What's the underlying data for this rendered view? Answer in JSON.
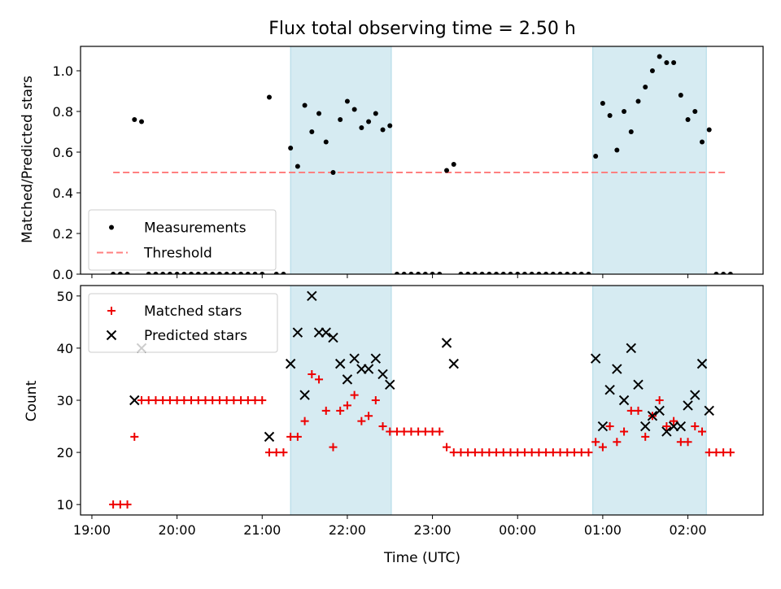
{
  "title": "Flux total observing time = 2.50 h",
  "top_ylabel": "Matched/Predicted stars",
  "bottom_ylabel": "Count",
  "xlabel": "Time (UTC)",
  "colors": {
    "measurement": "#000000",
    "threshold": "#ff8080",
    "matched": "#ee0000",
    "predicted": "#000000",
    "shade": "#add8e6"
  },
  "legend_top": [
    {
      "label": "Measurements",
      "marker": "dot"
    },
    {
      "label": "Threshold",
      "marker": "dashed-line"
    }
  ],
  "legend_bottom": [
    {
      "label": "Matched stars",
      "marker": "plus"
    },
    {
      "label": "Predicted stars",
      "marker": "x"
    }
  ],
  "chart_data": [
    {
      "type": "scatter",
      "panel": "top",
      "ylabel": "Matched/Predicted stars",
      "xlim": [
        "18:52",
        "02:53"
      ],
      "ylim": [
        0,
        1.12
      ],
      "x_ticks": [
        "19:00",
        "20:00",
        "21:00",
        "22:00",
        "23:00",
        "00:00",
        "01:00",
        "02:00"
      ],
      "y_ticks": [
        "0.0",
        "0.2",
        "0.4",
        "0.6",
        "0.8",
        "1.0"
      ],
      "grid": false,
      "legend_position": "lower-left",
      "shaded_intervals": [
        [
          "21:20",
          "22:31"
        ],
        [
          "00:53",
          "02:13"
        ]
      ],
      "threshold": {
        "name": "Threshold",
        "y": 0.5,
        "x_start": "19:15",
        "x_end": "02:28"
      },
      "series": [
        {
          "name": "Measurements",
          "marker": "dot",
          "points": [
            [
              "19:15",
              0
            ],
            [
              "19:20",
              0
            ],
            [
              "19:25",
              0
            ],
            [
              "19:30",
              0.76
            ],
            [
              "19:35",
              0.75
            ],
            [
              "19:40",
              0
            ],
            [
              "19:45",
              0
            ],
            [
              "19:50",
              0
            ],
            [
              "19:55",
              0
            ],
            [
              "20:00",
              0
            ],
            [
              "20:05",
              0
            ],
            [
              "20:10",
              0
            ],
            [
              "20:15",
              0
            ],
            [
              "20:20",
              0
            ],
            [
              "20:25",
              0
            ],
            [
              "20:30",
              0
            ],
            [
              "20:35",
              0
            ],
            [
              "20:40",
              0
            ],
            [
              "20:45",
              0
            ],
            [
              "20:50",
              0
            ],
            [
              "20:55",
              0
            ],
            [
              "21:00",
              0
            ],
            [
              "21:05",
              0.87
            ],
            [
              "21:10",
              0
            ],
            [
              "21:15",
              0
            ],
            [
              "21:20",
              0.62
            ],
            [
              "21:25",
              0.53
            ],
            [
              "21:30",
              0.83
            ],
            [
              "21:35",
              0.7
            ],
            [
              "21:40",
              0.79
            ],
            [
              "21:45",
              0.65
            ],
            [
              "21:50",
              0.5
            ],
            [
              "21:55",
              0.76
            ],
            [
              "22:00",
              0.85
            ],
            [
              "22:05",
              0.81
            ],
            [
              "22:10",
              0.72
            ],
            [
              "22:15",
              0.75
            ],
            [
              "22:20",
              0.79
            ],
            [
              "22:25",
              0.71
            ],
            [
              "22:30",
              0.73
            ],
            [
              "22:35",
              0
            ],
            [
              "22:40",
              0
            ],
            [
              "22:45",
              0
            ],
            [
              "22:50",
              0
            ],
            [
              "22:55",
              0
            ],
            [
              "23:00",
              0
            ],
            [
              "23:05",
              0
            ],
            [
              "23:10",
              0.51
            ],
            [
              "23:15",
              0.54
            ],
            [
              "23:20",
              0
            ],
            [
              "23:25",
              0
            ],
            [
              "23:30",
              0
            ],
            [
              "23:35",
              0
            ],
            [
              "23:40",
              0
            ],
            [
              "23:45",
              0
            ],
            [
              "23:50",
              0
            ],
            [
              "23:55",
              0
            ],
            [
              "00:00",
              0
            ],
            [
              "00:05",
              0
            ],
            [
              "00:10",
              0
            ],
            [
              "00:15",
              0
            ],
            [
              "00:20",
              0
            ],
            [
              "00:25",
              0
            ],
            [
              "00:30",
              0
            ],
            [
              "00:35",
              0
            ],
            [
              "00:40",
              0
            ],
            [
              "00:45",
              0
            ],
            [
              "00:50",
              0
            ],
            [
              "00:55",
              0.58
            ],
            [
              "01:00",
              0.84
            ],
            [
              "01:05",
              0.78
            ],
            [
              "01:10",
              0.61
            ],
            [
              "01:15",
              0.8
            ],
            [
              "01:20",
              0.7
            ],
            [
              "01:25",
              0.85
            ],
            [
              "01:30",
              0.92
            ],
            [
              "01:35",
              1.0
            ],
            [
              "01:40",
              1.07
            ],
            [
              "01:45",
              1.04
            ],
            [
              "01:50",
              1.04
            ],
            [
              "01:55",
              0.88
            ],
            [
              "02:00",
              0.76
            ],
            [
              "02:05",
              0.8
            ],
            [
              "02:10",
              0.65
            ],
            [
              "02:15",
              0.71
            ],
            [
              "02:20",
              0
            ],
            [
              "02:25",
              0
            ],
            [
              "02:30",
              0
            ]
          ]
        }
      ]
    },
    {
      "type": "scatter",
      "panel": "bottom",
      "ylabel": "Count",
      "xlabel": "Time (UTC)",
      "xlim": [
        "18:52",
        "02:53"
      ],
      "ylim": [
        8,
        52
      ],
      "x_ticks": [
        "19:00",
        "20:00",
        "21:00",
        "22:00",
        "23:00",
        "00:00",
        "01:00",
        "02:00"
      ],
      "y_ticks": [
        "10",
        "20",
        "30",
        "40",
        "50"
      ],
      "grid": false,
      "legend_position": "top-left",
      "shaded_intervals": [
        [
          "21:20",
          "22:31"
        ],
        [
          "00:53",
          "02:13"
        ]
      ],
      "series": [
        {
          "name": "Matched stars",
          "marker": "plus",
          "points": [
            [
              "19:15",
              10
            ],
            [
              "19:20",
              10
            ],
            [
              "19:25",
              10
            ],
            [
              "19:30",
              23
            ],
            [
              "19:35",
              30
            ],
            [
              "19:40",
              30
            ],
            [
              "19:45",
              30
            ],
            [
              "19:50",
              30
            ],
            [
              "19:55",
              30
            ],
            [
              "20:00",
              30
            ],
            [
              "20:05",
              30
            ],
            [
              "20:10",
              30
            ],
            [
              "20:15",
              30
            ],
            [
              "20:20",
              30
            ],
            [
              "20:25",
              30
            ],
            [
              "20:30",
              30
            ],
            [
              "20:35",
              30
            ],
            [
              "20:40",
              30
            ],
            [
              "20:45",
              30
            ],
            [
              "20:50",
              30
            ],
            [
              "20:55",
              30
            ],
            [
              "21:00",
              30
            ],
            [
              "21:05",
              20
            ],
            [
              "21:10",
              20
            ],
            [
              "21:15",
              20
            ],
            [
              "21:20",
              23
            ],
            [
              "21:25",
              23
            ],
            [
              "21:30",
              26
            ],
            [
              "21:35",
              35
            ],
            [
              "21:40",
              34
            ],
            [
              "21:45",
              28
            ],
            [
              "21:50",
              21
            ],
            [
              "21:55",
              28
            ],
            [
              "22:00",
              29
            ],
            [
              "22:05",
              31
            ],
            [
              "22:10",
              26
            ],
            [
              "22:15",
              27
            ],
            [
              "22:20",
              30
            ],
            [
              "22:25",
              25
            ],
            [
              "22:30",
              24
            ],
            [
              "22:35",
              24
            ],
            [
              "22:40",
              24
            ],
            [
              "22:45",
              24
            ],
            [
              "22:50",
              24
            ],
            [
              "22:55",
              24
            ],
            [
              "23:00",
              24
            ],
            [
              "23:05",
              24
            ],
            [
              "23:10",
              21
            ],
            [
              "23:15",
              20
            ],
            [
              "23:20",
              20
            ],
            [
              "23:25",
              20
            ],
            [
              "23:30",
              20
            ],
            [
              "23:35",
              20
            ],
            [
              "23:40",
              20
            ],
            [
              "23:45",
              20
            ],
            [
              "23:50",
              20
            ],
            [
              "23:55",
              20
            ],
            [
              "00:00",
              20
            ],
            [
              "00:05",
              20
            ],
            [
              "00:10",
              20
            ],
            [
              "00:15",
              20
            ],
            [
              "00:20",
              20
            ],
            [
              "00:25",
              20
            ],
            [
              "00:30",
              20
            ],
            [
              "00:35",
              20
            ],
            [
              "00:40",
              20
            ],
            [
              "00:45",
              20
            ],
            [
              "00:50",
              20
            ],
            [
              "00:55",
              22
            ],
            [
              "01:00",
              21
            ],
            [
              "01:05",
              25
            ],
            [
              "01:10",
              22
            ],
            [
              "01:15",
              24
            ],
            [
              "01:20",
              28
            ],
            [
              "01:25",
              28
            ],
            [
              "01:30",
              23
            ],
            [
              "01:35",
              27
            ],
            [
              "01:40",
              30
            ],
            [
              "01:45",
              25
            ],
            [
              "01:50",
              26
            ],
            [
              "01:55",
              22
            ],
            [
              "02:00",
              22
            ],
            [
              "02:05",
              25
            ],
            [
              "02:10",
              24
            ],
            [
              "02:15",
              20
            ],
            [
              "02:20",
              20
            ],
            [
              "02:25",
              20
            ],
            [
              "02:30",
              20
            ]
          ]
        },
        {
          "name": "Predicted stars",
          "marker": "x",
          "points": [
            [
              "19:30",
              30
            ],
            [
              "19:35",
              40
            ],
            [
              "21:05",
              23
            ],
            [
              "21:20",
              37
            ],
            [
              "21:25",
              43
            ],
            [
              "21:30",
              31
            ],
            [
              "21:35",
              50
            ],
            [
              "21:40",
              43
            ],
            [
              "21:45",
              43
            ],
            [
              "21:50",
              42
            ],
            [
              "21:55",
              37
            ],
            [
              "22:00",
              34
            ],
            [
              "22:05",
              38
            ],
            [
              "22:10",
              36
            ],
            [
              "22:15",
              36
            ],
            [
              "22:20",
              38
            ],
            [
              "22:25",
              35
            ],
            [
              "22:30",
              33
            ],
            [
              "23:10",
              41
            ],
            [
              "23:15",
              37
            ],
            [
              "00:55",
              38
            ],
            [
              "01:00",
              25
            ],
            [
              "01:05",
              32
            ],
            [
              "01:10",
              36
            ],
            [
              "01:15",
              30
            ],
            [
              "01:20",
              40
            ],
            [
              "01:25",
              33
            ],
            [
              "01:30",
              25
            ],
            [
              "01:35",
              27
            ],
            [
              "01:40",
              28
            ],
            [
              "01:45",
              24
            ],
            [
              "01:50",
              25
            ],
            [
              "01:55",
              25
            ],
            [
              "02:00",
              29
            ],
            [
              "02:05",
              31
            ],
            [
              "02:10",
              37
            ],
            [
              "02:15",
              28
            ]
          ]
        }
      ]
    }
  ]
}
